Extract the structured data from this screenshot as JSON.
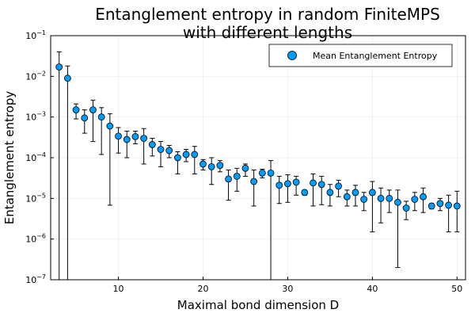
{
  "chart_data": {
    "type": "scatter",
    "title": [
      "Entanglement entropy in random FiniteMPS",
      "with different lengths"
    ],
    "xlabel": "Maximal bond dimension D",
    "ylabel": "Entanglement entropy",
    "xlim": [
      2,
      51
    ],
    "ylim": [
      1e-07,
      0.1
    ],
    "yscale": "log",
    "x_ticks": [
      10,
      20,
      30,
      40,
      50
    ],
    "y_ticks": [
      1e-07,
      1e-06,
      1e-05,
      0.0001,
      0.001,
      0.01,
      0.1
    ],
    "y_tick_labels": [
      {
        "base": "10",
        "exp": "−7"
      },
      {
        "base": "10",
        "exp": "−6"
      },
      {
        "base": "10",
        "exp": "−5"
      },
      {
        "base": "10",
        "exp": "−4"
      },
      {
        "base": "10",
        "exp": "−3"
      },
      {
        "base": "10",
        "exp": "−2"
      },
      {
        "base": "10",
        "exp": "−1"
      }
    ],
    "grid": true,
    "legend": {
      "position": "top-right",
      "entries": [
        "Mean Entanglement Entropy"
      ]
    },
    "marker_color": "#009AF9",
    "series": [
      {
        "name": "Mean Entanglement Entropy",
        "points": [
          {
            "x": 3,
            "y": 0.017,
            "lo": 1e-07,
            "hi": 0.04
          },
          {
            "x": 4,
            "y": 0.009,
            "lo": 1e-07,
            "hi": 0.018
          },
          {
            "x": 5,
            "y": 0.0015,
            "lo": 0.0009,
            "hi": 0.0021
          },
          {
            "x": 6,
            "y": 0.00095,
            "lo": 0.0004,
            "hi": 0.0015
          },
          {
            "x": 7,
            "y": 0.0015,
            "lo": 0.00025,
            "hi": 0.0026
          },
          {
            "x": 8,
            "y": 0.001,
            "lo": 0.00012,
            "hi": 0.0017
          },
          {
            "x": 9,
            "y": 0.0006,
            "lo": 6.8e-06,
            "hi": 0.0012
          },
          {
            "x": 10,
            "y": 0.00034,
            "lo": 0.00013,
            "hi": 0.00055
          },
          {
            "x": 11,
            "y": 0.00028,
            "lo": 0.0001,
            "hi": 0.00045
          },
          {
            "x": 12,
            "y": 0.00033,
            "lo": 0.00022,
            "hi": 0.00045
          },
          {
            "x": 13,
            "y": 0.0003,
            "lo": 7e-05,
            "hi": 0.00052
          },
          {
            "x": 14,
            "y": 0.00021,
            "lo": 0.00011,
            "hi": 0.0003
          },
          {
            "x": 15,
            "y": 0.00016,
            "lo": 6e-05,
            "hi": 0.00025
          },
          {
            "x": 16,
            "y": 0.00015,
            "lo": 0.0001,
            "hi": 0.0002
          },
          {
            "x": 17,
            "y": 0.0001,
            "lo": 4e-05,
            "hi": 0.00014
          },
          {
            "x": 18,
            "y": 0.00012,
            "lo": 8e-05,
            "hi": 0.00016
          },
          {
            "x": 19,
            "y": 0.00012,
            "lo": 4e-05,
            "hi": 0.00019
          },
          {
            "x": 20,
            "y": 7e-05,
            "lo": 5e-05,
            "hi": 9e-05
          },
          {
            "x": 21,
            "y": 6e-05,
            "lo": 2.2e-05,
            "hi": 0.0001
          },
          {
            "x": 22,
            "y": 6.5e-05,
            "lo": 4.5e-05,
            "hi": 8.5e-05
          },
          {
            "x": 23,
            "y": 3e-05,
            "lo": 9e-06,
            "hi": 5e-05
          },
          {
            "x": 24,
            "y": 3.5e-05,
            "lo": 1.5e-05,
            "hi": 5.5e-05
          },
          {
            "x": 25,
            "y": 5.5e-05,
            "lo": 3.5e-05,
            "hi": 7e-05
          },
          {
            "x": 26,
            "y": 2.6e-05,
            "lo": 6.5e-06,
            "hi": 5e-05
          },
          {
            "x": 27,
            "y": 4.2e-05,
            "lo": 3.2e-05,
            "hi": 5.2e-05
          },
          {
            "x": 28,
            "y": 4.2e-05,
            "lo": 1e-07,
            "hi": 8.5e-05
          },
          {
            "x": 29,
            "y": 2.1e-05,
            "lo": 7.5e-06,
            "hi": 3.5e-05
          },
          {
            "x": 30,
            "y": 2.3e-05,
            "lo": 8e-06,
            "hi": 3.8e-05
          },
          {
            "x": 31,
            "y": 2.5e-05,
            "lo": 1.2e-05,
            "hi": 3.5e-05
          },
          {
            "x": 32,
            "y": 1.4e-05,
            "lo": 1.2e-05,
            "hi": 1.6e-05
          },
          {
            "x": 33,
            "y": 2.4e-05,
            "lo": 6.5e-06,
            "hi": 4e-05
          },
          {
            "x": 34,
            "y": 2.2e-05,
            "lo": 7e-06,
            "hi": 3.5e-05
          },
          {
            "x": 35,
            "y": 1.4e-05,
            "lo": 6.5e-06,
            "hi": 2.2e-05
          },
          {
            "x": 36,
            "y": 2e-05,
            "lo": 1.1e-05,
            "hi": 2.8e-05
          },
          {
            "x": 37,
            "y": 1.1e-05,
            "lo": 6.5e-06,
            "hi": 1.6e-05
          },
          {
            "x": 38,
            "y": 1.4e-05,
            "lo": 6.5e-06,
            "hi": 2.1e-05
          },
          {
            "x": 39,
            "y": 9.5e-06,
            "lo": 5e-06,
            "hi": 1.4e-05
          },
          {
            "x": 40,
            "y": 1.4e-05,
            "lo": 1.5e-06,
            "hi": 2.6e-05
          },
          {
            "x": 41,
            "y": 1e-05,
            "lo": 2.5e-06,
            "hi": 1.8e-05
          },
          {
            "x": 42,
            "y": 1e-05,
            "lo": 4.5e-06,
            "hi": 1.6e-05
          },
          {
            "x": 43,
            "y": 8e-06,
            "lo": 2e-07,
            "hi": 1.6e-05
          },
          {
            "x": 44,
            "y": 5.8e-06,
            "lo": 3e-06,
            "hi": 8.5e-06
          },
          {
            "x": 45,
            "y": 9.5e-06,
            "lo": 5e-06,
            "hi": 1.4e-05
          },
          {
            "x": 46,
            "y": 1.1e-05,
            "lo": 4.5e-06,
            "hi": 1.8e-05
          },
          {
            "x": 47,
            "y": 6.5e-06,
            "lo": 5.5e-06,
            "hi": 7.5e-06
          },
          {
            "x": 48,
            "y": 7.5e-06,
            "lo": 5e-06,
            "hi": 1e-05
          },
          {
            "x": 49,
            "y": 6.8e-06,
            "lo": 1.5e-06,
            "hi": 1.2e-05
          },
          {
            "x": 50,
            "y": 6.5e-06,
            "lo": 1.5e-06,
            "hi": 1.5e-05
          }
        ]
      }
    ]
  }
}
